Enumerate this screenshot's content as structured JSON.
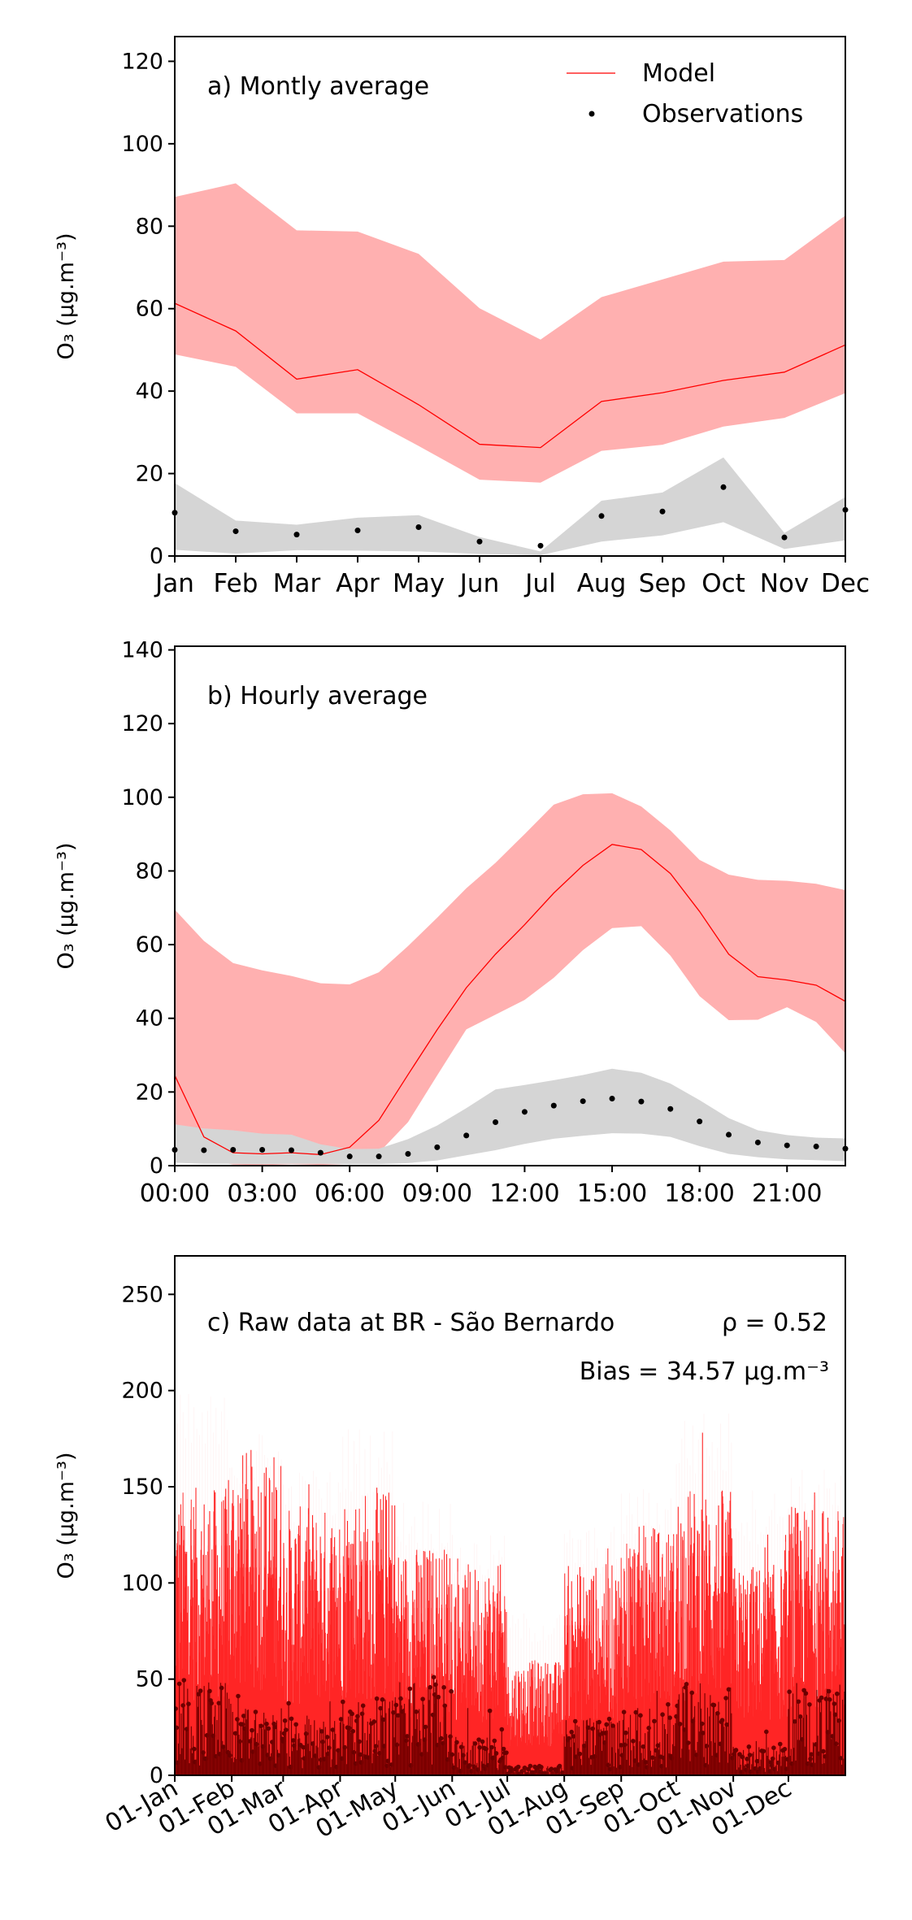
{
  "chart_data": [
    {
      "type": "line",
      "panel_label": "a) Montly average",
      "ylabel": "O₃ (μg.m⁻³)",
      "ylim": [
        0,
        126
      ],
      "yticks": [
        0,
        20,
        40,
        60,
        80,
        100,
        120
      ],
      "categories": [
        "Jan",
        "Feb",
        "Mar",
        "Apr",
        "May",
        "Jun",
        "Jul",
        "Aug",
        "Sep",
        "Oct",
        "Nov",
        "Dec"
      ],
      "legend": {
        "placement": "top-right",
        "entries": [
          "Model",
          "Observations"
        ]
      },
      "series": [
        {
          "name": "Model",
          "kind": "line",
          "color": "#ff0000",
          "values": [
            61.3,
            54.6,
            42.9,
            45.2,
            36.7,
            27.1,
            26.3,
            37.5,
            39.6,
            42.6,
            44.6,
            51.2
          ]
        },
        {
          "kind": "band",
          "color": "#ffb0b0",
          "lower": [
            48.9,
            45.9,
            34.6,
            34.6,
            26.7,
            18.5,
            17.8,
            25.5,
            27.0,
            31.4,
            33.5,
            39.5
          ],
          "upper": [
            87.1,
            90.4,
            79.0,
            78.7,
            73.3,
            60.1,
            52.5,
            62.8,
            67.1,
            71.4,
            71.8,
            82.6
          ]
        },
        {
          "name": "Observations",
          "kind": "points",
          "color": "#000000",
          "values": [
            10.5,
            6.0,
            5.2,
            6.2,
            7.0,
            3.5,
            2.5,
            9.7,
            10.8,
            16.7,
            4.5,
            11.2
          ]
        },
        {
          "kind": "band",
          "color": "#d5d5d5",
          "lower": [
            1.5,
            0.6,
            1.4,
            1.3,
            1.1,
            0.5,
            0.2,
            3.5,
            5.0,
            8.2,
            1.7,
            3.8
          ],
          "upper": [
            17.7,
            8.6,
            7.6,
            9.3,
            9.9,
            4.6,
            1.1,
            13.4,
            15.4,
            23.9,
            5.6,
            14.3
          ]
        }
      ]
    },
    {
      "type": "line",
      "panel_label": "b) Hourly average",
      "ylabel": "O₃ (μg.m⁻³)",
      "ylim": [
        0,
        141
      ],
      "yticks": [
        0,
        20,
        40,
        60,
        80,
        100,
        120,
        140
      ],
      "x": [
        0,
        1,
        2,
        3,
        4,
        5,
        6,
        7,
        8,
        9,
        10,
        11,
        12,
        13,
        14,
        15,
        16,
        17,
        18,
        19,
        20,
        21,
        22,
        23
      ],
      "xlim": [
        0,
        23
      ],
      "xticks": [
        {
          "v": 0,
          "label": "00:00"
        },
        {
          "v": 3,
          "label": "03:00"
        },
        {
          "v": 6,
          "label": "06:00"
        },
        {
          "v": 9,
          "label": "09:00"
        },
        {
          "v": 12,
          "label": "12:00"
        },
        {
          "v": 15,
          "label": "15:00"
        },
        {
          "v": 18,
          "label": "18:00"
        },
        {
          "v": 21,
          "label": "21:00"
        }
      ],
      "series": [
        {
          "name": "Model",
          "kind": "line",
          "color": "#ff0000",
          "values": [
            24.5,
            7.8,
            3.5,
            3.2,
            3.5,
            3.0,
            5.0,
            12.3,
            24.7,
            36.9,
            48.3,
            57.4,
            65.4,
            74.0,
            81.5,
            87.2,
            85.8,
            79.3,
            69.0,
            57.4,
            51.3,
            50.4,
            49.0,
            44.6
          ]
        },
        {
          "kind": "band",
          "color": "#ffb0b0",
          "lower": [
            8.5,
            1.8,
            0.3,
            0.1,
            0.4,
            0.2,
            0.5,
            3.5,
            11.8,
            24.5,
            37.0,
            41.0,
            45.0,
            51.0,
            58.5,
            64.5,
            65.0,
            57.0,
            46.0,
            39.5,
            39.6,
            43.0,
            39.0,
            30.5
          ],
          "upper": [
            69.5,
            61.0,
            55.0,
            53.0,
            51.5,
            49.5,
            49.2,
            52.5,
            59.6,
            67.3,
            75.3,
            82.2,
            90.0,
            98.0,
            100.8,
            101.1,
            97.5,
            91.0,
            83.0,
            79.0,
            77.6,
            77.3,
            76.5,
            74.8
          ]
        },
        {
          "name": "Observations",
          "kind": "points",
          "color": "#000000",
          "values": [
            4.3,
            4.2,
            4.3,
            4.3,
            4.2,
            3.5,
            2.5,
            2.5,
            3.2,
            5.0,
            8.2,
            11.8,
            14.6,
            16.3,
            17.5,
            18.2,
            17.4,
            15.4,
            12.0,
            8.4,
            6.3,
            5.5,
            5.2,
            4.6
          ]
        },
        {
          "kind": "band",
          "color": "#d5d5d5",
          "lower": [
            0.8,
            0.5,
            0.5,
            0.4,
            0.5,
            0.5,
            0.4,
            0.4,
            0.7,
            1.4,
            2.8,
            4.2,
            5.9,
            7.3,
            8.1,
            8.8,
            8.7,
            7.8,
            5.3,
            3.2,
            2.3,
            1.7,
            1.5,
            1.2
          ],
          "upper": [
            11.2,
            10.1,
            9.6,
            8.7,
            8.4,
            5.8,
            4.5,
            4.6,
            7.2,
            10.9,
            15.6,
            20.7,
            21.9,
            23.2,
            24.6,
            26.3,
            25.2,
            22.3,
            17.8,
            12.9,
            9.6,
            8.3,
            7.6,
            7.4
          ]
        }
      ]
    },
    {
      "type": "line",
      "panel_label": "c) Raw data at BR - São Bernardo",
      "stats": [
        "ρ = 0.52",
        "Bias = 34.57 μg.m⁻³"
      ],
      "ylabel": "O₃ (μg.m⁻³)",
      "ylim": [
        0,
        270
      ],
      "yticks": [
        0,
        50,
        100,
        150,
        200,
        250
      ],
      "xlim_days": [
        0,
        365
      ],
      "xticks": [
        {
          "v": 0,
          "label": "01-Jan"
        },
        {
          "v": 31,
          "label": "01-Feb"
        },
        {
          "v": 59,
          "label": "01-Mar"
        },
        {
          "v": 90,
          "label": "01-Apr"
        },
        {
          "v": 120,
          "label": "01-May"
        },
        {
          "v": 151,
          "label": "01-Jun"
        },
        {
          "v": 181,
          "label": "01-Jul"
        },
        {
          "v": 212,
          "label": "01-Aug"
        },
        {
          "v": 243,
          "label": "01-Sep"
        },
        {
          "v": 273,
          "label": "01-Oct"
        },
        {
          "v": 304,
          "label": "01-Nov"
        },
        {
          "v": 334,
          "label": "01-Dec"
        }
      ],
      "series": [
        {
          "name": "Model",
          "kind": "raw-hourly",
          "color": "#ff0000",
          "typical_peak_by_month": [
            150,
            170,
            140,
            150,
            120,
            110,
            60,
            110,
            130,
            150,
            110,
            140
          ],
          "max_peak_by_month": [
            199,
            180,
            160,
            182,
            145,
            125,
            85,
            130,
            150,
            190,
            150,
            160
          ]
        },
        {
          "name": "Observations",
          "kind": "raw-points",
          "color": "#8b0000",
          "typical_peak_by_month": [
            50,
            35,
            30,
            40,
            50,
            20,
            5,
            30,
            35,
            50,
            15,
            45
          ],
          "max_peak_by_month": [
            55,
            50,
            45,
            48,
            55,
            35,
            8,
            45,
            45,
            55,
            25,
            55
          ]
        }
      ]
    }
  ]
}
